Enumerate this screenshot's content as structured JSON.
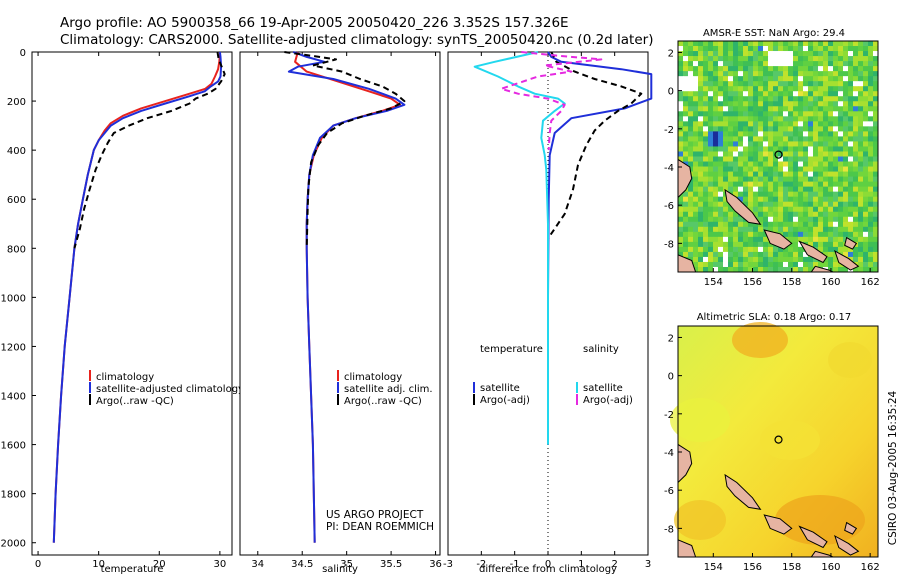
{
  "header": {
    "line1": "Argo profile: AO 5900358_66 19-Apr-2005 20050420_226 3.352S 157.326E",
    "line2": "Climatology: CARS2000. Satellite-adjusted climatology: synTS_20050420.nc (0.2d later)"
  },
  "side_label": "CSIRO 03-Aug-2005 16:35:24",
  "project_label": {
    "line1": "US ARGO PROJECT",
    "line2": "PI: DEAN ROEMMICH"
  },
  "colors": {
    "climatology": "#e8231e",
    "satellite": "#1f2fd9",
    "argo": "#000000",
    "salinity_satellite": "#22d8ee",
    "salinity_argo": "#e52ae0",
    "land": "#e6b4a2"
  },
  "chart_data": [
    {
      "id": "temperature",
      "type": "line",
      "xlabel": "temperature",
      "ylabel": "",
      "xlim": [
        -1,
        32
      ],
      "ylim": [
        2050,
        0
      ],
      "xticks": [
        0,
        10,
        20,
        30
      ],
      "yticks": [
        0,
        200,
        400,
        600,
        800,
        1000,
        1200,
        1400,
        1600,
        1800,
        2000
      ],
      "legend": [
        "climatology",
        "satellite-adjusted climatology",
        "Argo(..raw -QC)"
      ],
      "series": [
        {
          "name": "climatology",
          "style": "solid",
          "color": "#e8231e",
          "points": [
            [
              30,
              0
            ],
            [
              30,
              10
            ],
            [
              29.9,
              40
            ],
            [
              29.7,
              70
            ],
            [
              29.2,
              100
            ],
            [
              28.6,
              130
            ],
            [
              27.6,
              150
            ],
            [
              25,
              170
            ],
            [
              21,
              200
            ],
            [
              17,
              230
            ],
            [
              14,
              260
            ],
            [
              12,
              290
            ],
            [
              11,
              320
            ],
            [
              10,
              360
            ],
            [
              9.2,
              400
            ],
            [
              8.2,
              500
            ],
            [
              7.4,
              600
            ],
            [
              6.6,
              700
            ],
            [
              6,
              800
            ],
            [
              5.2,
              1000
            ],
            [
              4.4,
              1200
            ],
            [
              3.8,
              1400
            ],
            [
              3.3,
              1600
            ],
            [
              2.9,
              1800
            ],
            [
              2.6,
              2000
            ]
          ]
        },
        {
          "name": "satellite",
          "style": "solid",
          "color": "#1f2fd9",
          "points": [
            [
              30,
              0
            ],
            [
              30.1,
              20
            ],
            [
              30.2,
              60
            ],
            [
              30.1,
              100
            ],
            [
              29.7,
              120
            ],
            [
              28.5,
              140
            ],
            [
              27.5,
              160
            ],
            [
              25,
              180
            ],
            [
              21,
              210
            ],
            [
              17,
              240
            ],
            [
              14,
              270
            ],
            [
              12,
              300
            ],
            [
              11,
              330
            ],
            [
              10,
              360
            ],
            [
              9.2,
              400
            ],
            [
              8.2,
              500
            ],
            [
              7.4,
              600
            ],
            [
              6.6,
              700
            ],
            [
              6,
              800
            ],
            [
              5.2,
              1000
            ],
            [
              4.4,
              1200
            ],
            [
              3.8,
              1400
            ],
            [
              3.3,
              1600
            ],
            [
              2.9,
              1800
            ],
            [
              2.6,
              2000
            ]
          ]
        },
        {
          "name": "argo",
          "style": "dashed",
          "color": "#000000",
          "points": [
            [
              29.6,
              0
            ],
            [
              29.8,
              30
            ],
            [
              30.3,
              60
            ],
            [
              30.8,
              90
            ],
            [
              30.2,
              120
            ],
            [
              29.3,
              150
            ],
            [
              28,
              170
            ],
            [
              26,
              190
            ],
            [
              25,
              210
            ],
            [
              22,
              240
            ],
            [
              18,
              270
            ],
            [
              15,
              300
            ],
            [
              12.5,
              330
            ],
            [
              11.5,
              370
            ],
            [
              10.5,
              420
            ],
            [
              9.5,
              480
            ],
            [
              8.5,
              560
            ],
            [
              7.6,
              640
            ],
            [
              6.9,
              720
            ],
            [
              6,
              800
            ]
          ]
        }
      ]
    },
    {
      "id": "salinity",
      "type": "line",
      "xlabel": "salinity",
      "ylabel": "",
      "xlim": [
        33.8,
        36.05
      ],
      "ylim": [
        2050,
        0
      ],
      "xticks": [
        34,
        34.5,
        35,
        35.5,
        36
      ],
      "yticks": [],
      "legend": [
        "climatology",
        "satellite adj. clim.",
        "Argo(..raw -QC)"
      ],
      "series": [
        {
          "name": "climatology",
          "style": "solid",
          "color": "#e8231e",
          "points": [
            [
              34.45,
              0
            ],
            [
              34.42,
              40
            ],
            [
              34.55,
              80
            ],
            [
              34.9,
              120
            ],
            [
              35.25,
              160
            ],
            [
              35.5,
              190
            ],
            [
              35.6,
              215
            ],
            [
              35.4,
              240
            ],
            [
              35.1,
              270
            ],
            [
              34.85,
              300
            ],
            [
              34.72,
              350
            ],
            [
              34.63,
              420
            ],
            [
              34.58,
              500
            ],
            [
              34.56,
              600
            ],
            [
              34.55,
              700
            ],
            [
              34.55,
              800
            ],
            [
              34.56,
              1000
            ],
            [
              34.58,
              1200
            ],
            [
              34.6,
              1400
            ],
            [
              34.62,
              1600
            ],
            [
              34.63,
              1800
            ],
            [
              34.64,
              2000
            ]
          ]
        },
        {
          "name": "satellite",
          "style": "solid",
          "color": "#1f2fd9",
          "points": [
            [
              34.4,
              0
            ],
            [
              34.55,
              20
            ],
            [
              34.75,
              40
            ],
            [
              34.45,
              60
            ],
            [
              34.35,
              80
            ],
            [
              34.85,
              110
            ],
            [
              35.25,
              150
            ],
            [
              35.55,
              190
            ],
            [
              35.65,
              215
            ],
            [
              35.45,
              240
            ],
            [
              35.1,
              270
            ],
            [
              34.85,
              300
            ],
            [
              34.7,
              350
            ],
            [
              34.62,
              420
            ],
            [
              34.58,
              500
            ],
            [
              34.56,
              600
            ],
            [
              34.55,
              700
            ],
            [
              34.55,
              800
            ],
            [
              34.56,
              1000
            ],
            [
              34.58,
              1200
            ],
            [
              34.6,
              1400
            ],
            [
              34.62,
              1600
            ],
            [
              34.63,
              1800
            ],
            [
              34.64,
              2000
            ]
          ]
        },
        {
          "name": "argo",
          "style": "dashed",
          "color": "#000000",
          "points": [
            [
              34.3,
              0
            ],
            [
              34.6,
              15
            ],
            [
              34.88,
              30
            ],
            [
              34.62,
              55
            ],
            [
              34.95,
              80
            ],
            [
              35.15,
              110
            ],
            [
              35.4,
              140
            ],
            [
              35.55,
              170
            ],
            [
              35.65,
              200
            ],
            [
              35.5,
              230
            ],
            [
              35.2,
              260
            ],
            [
              34.95,
              290
            ],
            [
              34.78,
              330
            ],
            [
              34.68,
              380
            ],
            [
              34.6,
              450
            ],
            [
              34.57,
              550
            ],
            [
              34.56,
              650
            ],
            [
              34.55,
              800
            ]
          ]
        }
      ]
    },
    {
      "id": "difference",
      "type": "line",
      "xlabel": "difference from climatology",
      "ylabel": "",
      "xlim": [
        -3,
        3
      ],
      "ylim": [
        2050,
        0
      ],
      "xticks": [
        -3,
        -2,
        -1,
        0,
        1,
        2,
        3
      ],
      "yticks": [],
      "legend": [
        "temperature",
        "satellite",
        "Argo(-adj)",
        "salinity",
        "satellite",
        "Argo(-adj)"
      ],
      "series": [
        {
          "name": "temperature satellite",
          "style": "solid",
          "color": "#1f2fd9",
          "points": [
            [
              0,
              0
            ],
            [
              0.1,
              20
            ],
            [
              0.4,
              40
            ],
            [
              2.2,
              70
            ],
            [
              3.1,
              90
            ],
            [
              3.1,
              190
            ],
            [
              2.3,
              230
            ],
            [
              0.7,
              270
            ],
            [
              0.2,
              330
            ],
            [
              0.05,
              420
            ],
            [
              0.02,
              600
            ],
            [
              0,
              1000
            ],
            [
              0,
              1600
            ]
          ]
        },
        {
          "name": "temperature argo",
          "style": "dashed",
          "color": "#000000",
          "points": [
            [
              0.1,
              0
            ],
            [
              0.25,
              40
            ],
            [
              0.8,
              80
            ],
            [
              1.4,
              110
            ],
            [
              2.2,
              140
            ],
            [
              2.8,
              170
            ],
            [
              2.5,
              210
            ],
            [
              2.1,
              240
            ],
            [
              1.7,
              280
            ],
            [
              1.4,
              320
            ],
            [
              1.15,
              380
            ],
            [
              0.9,
              460
            ],
            [
              0.75,
              560
            ],
            [
              0.5,
              660
            ],
            [
              0.2,
              720
            ],
            [
              0,
              760
            ]
          ]
        },
        {
          "name": "salinity satellite",
          "style": "solid",
          "color": "#22d8ee",
          "points": [
            [
              -0.3,
              0
            ],
            [
              -1.6,
              40
            ],
            [
              -2.2,
              60
            ],
            [
              -1.5,
              100
            ],
            [
              -0.9,
              140
            ],
            [
              -0.4,
              170
            ],
            [
              0.3,
              190
            ],
            [
              0.5,
              210
            ],
            [
              0.2,
              240
            ],
            [
              -0.15,
              280
            ],
            [
              -0.2,
              350
            ],
            [
              -0.1,
              420
            ],
            [
              -0.05,
              480
            ],
            [
              0,
              700
            ],
            [
              0,
              1000
            ],
            [
              0,
              1600
            ]
          ]
        },
        {
          "name": "salinity argo",
          "style": "dashed",
          "color": "#e52ae0",
          "points": [
            [
              -0.8,
              0
            ],
            [
              0.3,
              15
            ],
            [
              1.6,
              30
            ],
            [
              -0.1,
              55
            ],
            [
              0.7,
              80
            ],
            [
              -0.3,
              100
            ],
            [
              -1.4,
              150
            ],
            [
              -0.9,
              170
            ],
            [
              0,
              190
            ],
            [
              0.5,
              215
            ],
            [
              0.4,
              240
            ],
            [
              0.1,
              280
            ],
            [
              0.05,
              330
            ],
            [
              0.02,
              400
            ]
          ]
        }
      ]
    },
    {
      "id": "sst_map",
      "type": "heatmap",
      "title": "AMSR-E SST: NaN Argo: 29.4",
      "xlim": [
        152.2,
        162.4
      ],
      "ylim": [
        -9.5,
        2.6
      ],
      "xticks": [
        154,
        156,
        158,
        160,
        162
      ],
      "yticks": [
        2,
        0,
        -2,
        -4,
        -6,
        -8
      ],
      "marker": {
        "lon": 157.326,
        "lat": -3.352
      }
    },
    {
      "id": "sla_map",
      "type": "heatmap",
      "title": "Altimetric SLA: 0.18 Argo: 0.17",
      "xlim": [
        152.2,
        162.4
      ],
      "ylim": [
        -9.5,
        2.6
      ],
      "xticks": [
        154,
        156,
        158,
        160,
        162
      ],
      "yticks": [
        2,
        0,
        -2,
        -4,
        -6,
        -8
      ],
      "marker": {
        "lon": 157.326,
        "lat": -3.352
      }
    }
  ]
}
